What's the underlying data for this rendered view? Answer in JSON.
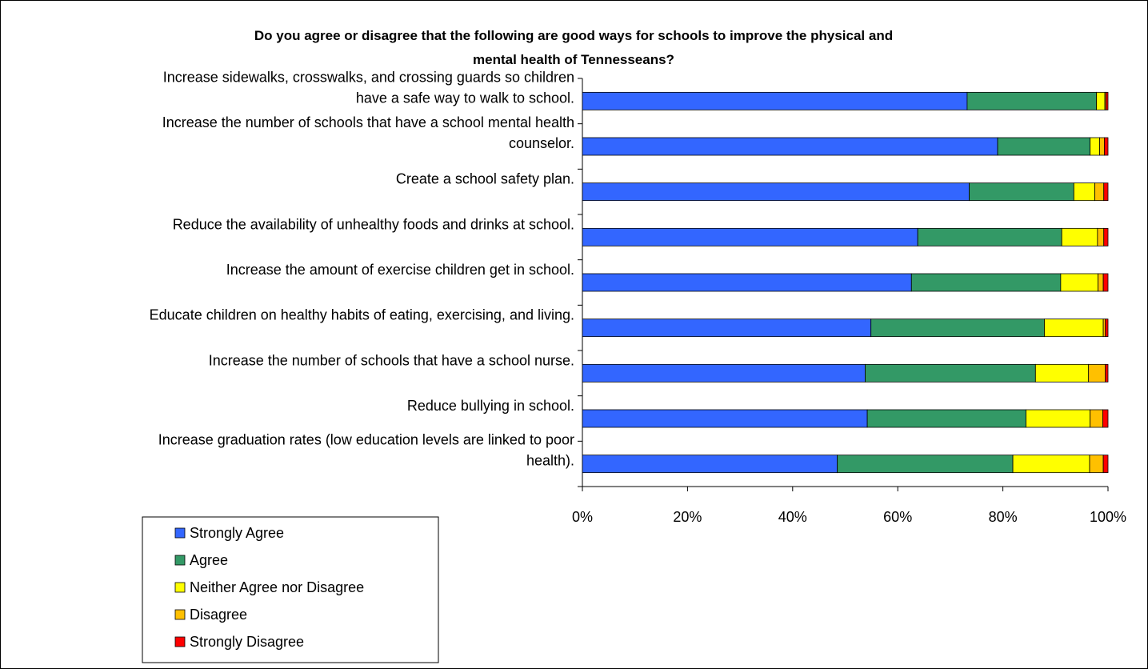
{
  "chart_data": {
    "type": "bar",
    "orientation": "horizontal",
    "stacked": "percent",
    "title_lines": [
      "Do you agree or disagree that the following are good ways for schools to improve the physical and",
      "mental health of Tennesseans?"
    ],
    "categories": [
      [
        "Increase sidewalks, crosswalks, and crossing guards so children",
        "have a safe way to walk to school."
      ],
      [
        "Increase the number of schools that have a school mental health",
        "counselor."
      ],
      [
        "Create a school safety plan."
      ],
      [
        "Reduce the availability of unhealthy foods and drinks at school."
      ],
      [
        "Increase the amount of exercise children get in school."
      ],
      [
        "Educate children on healthy habits of eating, exercising, and living."
      ],
      [
        "Increase the number of schools that have a school nurse."
      ],
      [
        "Reduce bullying in school."
      ],
      [
        "Increase graduation rates (low education levels are linked to poor",
        "health)."
      ]
    ],
    "series": [
      {
        "name": "Strongly Agree",
        "color": "#3366ff",
        "values": [
          73.2,
          79.0,
          73.6,
          63.8,
          62.6,
          54.9,
          53.8,
          54.2,
          48.5
        ]
      },
      {
        "name": "Agree",
        "color": "#339966",
        "values": [
          24.6,
          17.6,
          19.9,
          27.4,
          28.4,
          33.0,
          32.4,
          30.2,
          33.4
        ]
      },
      {
        "name": "Neither Agree nor Disagree",
        "color": "#ffff00",
        "values": [
          1.6,
          1.8,
          4.0,
          6.8,
          7.1,
          11.2,
          10.1,
          12.2,
          14.6
        ]
      },
      {
        "name": "Disagree",
        "color": "#ffc000",
        "values": [
          0.2,
          0.9,
          1.7,
          1.2,
          1.0,
          0.4,
          3.2,
          2.4,
          2.6
        ]
      },
      {
        "name": "Strongly Disagree",
        "color": "#ff0000",
        "values": [
          0.4,
          0.7,
          0.8,
          0.8,
          0.9,
          0.5,
          0.5,
          1.0,
          0.9
        ]
      }
    ],
    "x_ticks": [
      "0%",
      "20%",
      "40%",
      "60%",
      "80%",
      "100%"
    ],
    "xlim": [
      0,
      100
    ],
    "grid": false,
    "legend_position": "bottom-left"
  }
}
